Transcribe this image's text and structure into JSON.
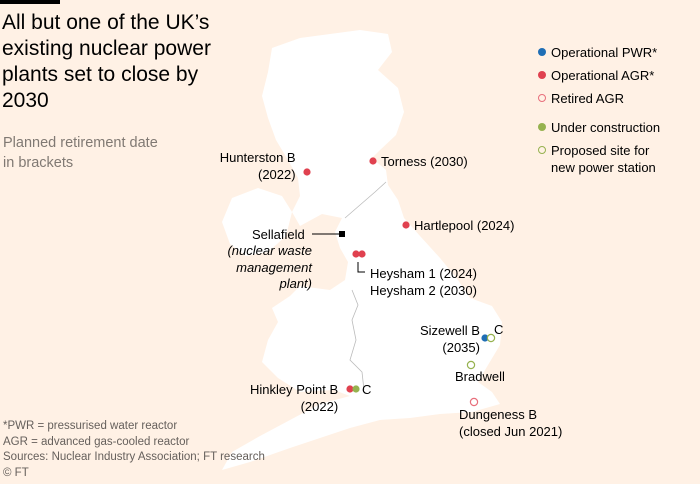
{
  "title": "All but one of the UK’s existing nuclear power plants set to close by 2030",
  "subtitle": "Planned retirement date in brackets",
  "colors": {
    "background": "#fff1e5",
    "land": "#ffffff",
    "operational_pwr": "#1f6eb5",
    "operational_agr": "#e0414f",
    "retired_agr": "#e86f7c",
    "under_construction": "#96b24f",
    "proposed": "#96b24f"
  },
  "legend": [
    {
      "label": "Operational PWR*",
      "type": "operational_pwr"
    },
    {
      "label": "Operational AGR*",
      "type": "operational_agr"
    },
    {
      "label": "Retired AGR",
      "type": "retired_agr"
    },
    {
      "label": "Under construction",
      "type": "under_construction"
    },
    {
      "label": "Proposed site for new power station",
      "type": "proposed"
    }
  ],
  "sites": {
    "hunterston": {
      "name": "Hunterston B",
      "date": "(2022)",
      "type": "operational_agr"
    },
    "torness": {
      "label": "Torness (2030)",
      "type": "operational_agr"
    },
    "hartlepool": {
      "label": "Hartlepool (2024)",
      "type": "operational_agr"
    },
    "sellafield": {
      "name": "Sellafield",
      "note": "(nuclear waste management plant)"
    },
    "heysham": {
      "line1": "Heysham 1 (2024)",
      "line2": "Heysham 2 (2030)",
      "type": "operational_agr"
    },
    "sizewell": {
      "name": "Sizewell B",
      "date": "(2035)",
      "c_label": "C",
      "type": "operational_pwr",
      "c_type": "proposed"
    },
    "bradwell": {
      "label": "Bradwell",
      "type": "proposed"
    },
    "hinkley": {
      "name": "Hinkley Point B",
      "date": "(2022)",
      "c_label": "C",
      "type": "operational_agr",
      "c_type": "under_construction"
    },
    "dungeness": {
      "name": "Dungeness B",
      "date": "(closed Jun 2021)",
      "type": "retired_agr"
    }
  },
  "footnotes": [
    "*PWR = pressurised water reactor",
    "AGR = advanced gas-cooled reactor",
    "Sources: Nuclear Industry Association; FT research",
    "© FT"
  ]
}
